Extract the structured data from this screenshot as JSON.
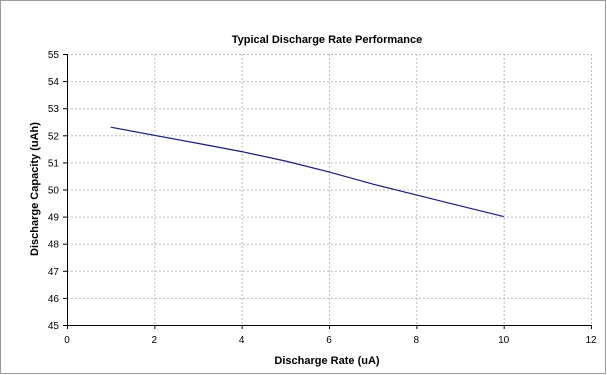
{
  "chart_data": {
    "type": "line",
    "title": "Typical Discharge Rate Performance",
    "xlabel": "Discharge Rate (uA)",
    "ylabel": "Discharge Capacity (uAh)",
    "xlim": [
      0,
      12
    ],
    "ylim": [
      45,
      55
    ],
    "x_ticks": [
      0,
      2,
      4,
      6,
      8,
      10,
      12
    ],
    "y_ticks": [
      45,
      46,
      47,
      48,
      49,
      50,
      51,
      52,
      53,
      54,
      55
    ],
    "grid": true,
    "legend": "none",
    "series": [
      {
        "color": "#1a1a7a",
        "x": [
          1,
          2,
          3,
          4,
          5,
          6,
          7,
          8,
          9,
          10
        ],
        "y": [
          52.3,
          52.0,
          51.7,
          51.4,
          51.05,
          50.65,
          50.2,
          49.8,
          49.4,
          49.0
        ]
      }
    ]
  },
  "colors": {
    "plot_background": "#ffffff",
    "gridline": "#bdbdbd",
    "axis": "#000000",
    "line": "#1a1a7a"
  }
}
